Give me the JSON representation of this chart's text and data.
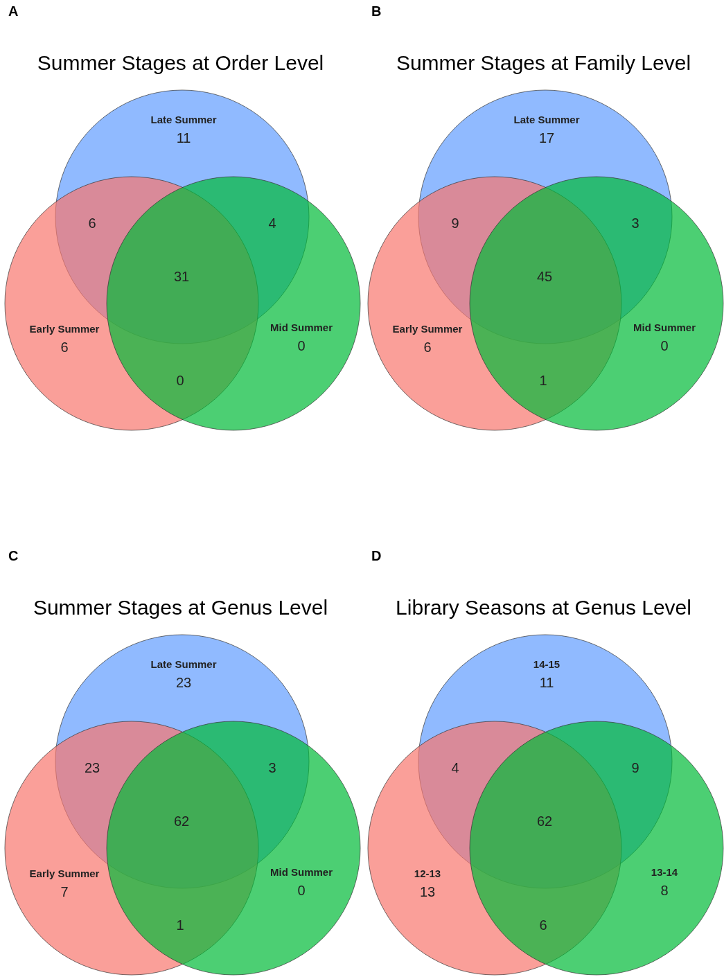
{
  "chart_data": [
    {
      "type": "other",
      "title": "Summer Stages at Order Level",
      "annotations": [
        "A",
        "6",
        "4",
        "0",
        "31"
      ],
      "categories": [
        "Late Summer",
        "Early Summer",
        "Mid Summer"
      ],
      "values": [
        11,
        6,
        0
      ],
      "data_labels": true,
      "colors": [
        "#619cff",
        "#f8766d",
        "#00ba38"
      ]
    },
    {
      "type": "other",
      "title": "Summer Stages at Family Level",
      "annotations": [
        "B",
        "9",
        "3",
        "1",
        "45"
      ],
      "categories": [
        "Late Summer",
        "Early Summer",
        "Mid Summer"
      ],
      "values": [
        17,
        6,
        0
      ],
      "data_labels": true,
      "colors": [
        "#619cff",
        "#f8766d",
        "#00ba38"
      ]
    },
    {
      "type": "other",
      "title": "Summer Stages at Genus Level",
      "annotations": [
        "C",
        "23",
        "3",
        "1",
        "62"
      ],
      "categories": [
        "Late Summer",
        "Early Summer",
        "Mid Summer"
      ],
      "values": [
        23,
        7,
        0
      ],
      "data_labels": true,
      "colors": [
        "#619cff",
        "#f8766d",
        "#00ba38"
      ]
    },
    {
      "type": "other",
      "title": "Library Seasons at Genus Level",
      "annotations": [
        "D",
        "4",
        "9",
        "6",
        "62"
      ],
      "categories": [
        "14-15",
        "12-13",
        "13-14"
      ],
      "values": [
        11,
        13,
        8
      ],
      "data_labels": true,
      "colors": [
        "#619cff",
        "#f8766d",
        "#00ba38"
      ]
    }
  ]
}
